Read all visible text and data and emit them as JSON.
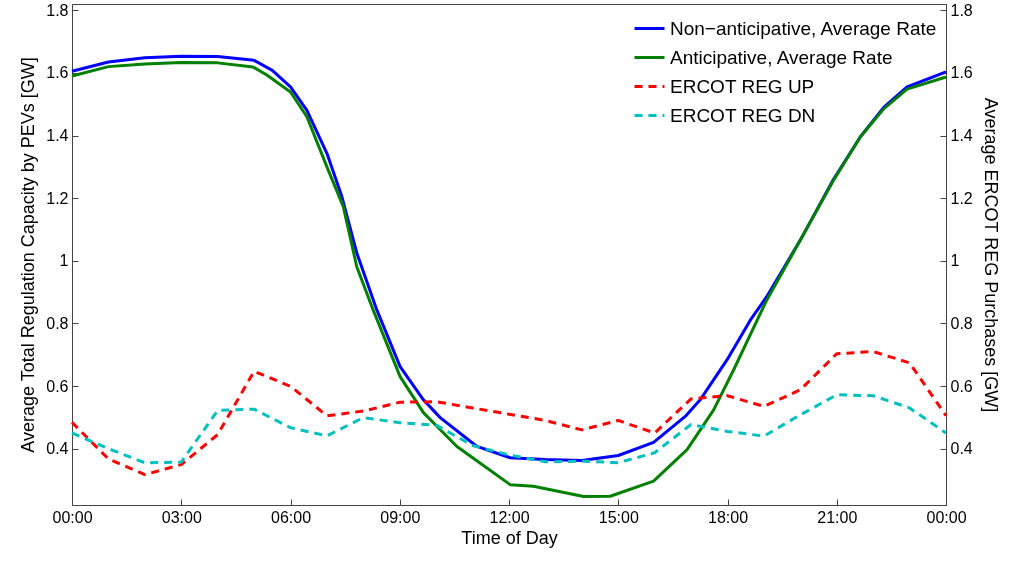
{
  "chart_data": {
    "type": "line",
    "xlabel": "Time of Day",
    "ylabel": "Average Total Regulation Capacity by PEVs [GW]",
    "y2label": "Average ERCOT REG Purchases [GW]",
    "xlim": [
      0,
      24
    ],
    "xticks": [
      {
        "value": 0,
        "label": "00:00"
      },
      {
        "value": 3,
        "label": "03:00"
      },
      {
        "value": 6,
        "label": "06:00"
      },
      {
        "value": 9,
        "label": "09:00"
      },
      {
        "value": 12,
        "label": "12:00"
      },
      {
        "value": 15,
        "label": "15:00"
      },
      {
        "value": 18,
        "label": "18:00"
      },
      {
        "value": 21,
        "label": "21:00"
      },
      {
        "value": 24,
        "label": "00:00"
      }
    ],
    "ylim": [
      0.22,
      1.82
    ],
    "yticks": [
      0.4,
      0.6,
      0.8,
      1,
      1.2,
      1.4,
      1.6,
      1.8
    ],
    "y2lim": [
      0.22,
      1.82
    ],
    "y2ticks": [
      0.4,
      0.6,
      0.8,
      1,
      1.2,
      1.4,
      1.6,
      1.8
    ],
    "grid": false,
    "legend": "top right",
    "marker": "none",
    "series": [
      {
        "name": "Non−anticipative, Average Rate",
        "color": "#0000ff",
        "line_style": "solid",
        "x": [
          0,
          1,
          2,
          3,
          4,
          5,
          5.5,
          6,
          6.45,
          7,
          7.41,
          7.82,
          8.37,
          9.01,
          9.65,
          10.11,
          11.12,
          12.03,
          13,
          14,
          15,
          15.97,
          16.84,
          17.25,
          17.99,
          18.63,
          19.08,
          20,
          20.9,
          21.65,
          22.29,
          22.93,
          24
        ],
        "values": [
          1.605,
          1.635,
          1.648,
          1.653,
          1.652,
          1.64,
          1.608,
          1.555,
          1.48,
          1.343,
          1.205,
          1.025,
          0.843,
          0.662,
          0.556,
          0.499,
          0.407,
          0.371,
          0.365,
          0.362,
          0.378,
          0.42,
          0.503,
          0.556,
          0.684,
          0.811,
          0.886,
          1.066,
          1.258,
          1.396,
          1.49,
          1.555,
          1.603
        ]
      },
      {
        "name": "Anticipative, Average Rate",
        "color": "#008000",
        "line_style": "solid",
        "x": [
          0,
          1,
          2,
          3,
          4,
          4.97,
          5.35,
          6,
          6.45,
          7,
          7.45,
          7.82,
          8.27,
          9.01,
          9.65,
          10.57,
          12.03,
          12.67,
          14.05,
          14.78,
          15.97,
          16.89,
          17.62,
          18.17,
          19.08,
          20,
          20.9,
          21.65,
          22.29,
          22.93,
          24
        ],
        "values": [
          1.59,
          1.62,
          1.628,
          1.633,
          1.632,
          1.619,
          1.593,
          1.539,
          1.46,
          1.3,
          1.173,
          0.981,
          0.843,
          0.63,
          0.515,
          0.407,
          0.285,
          0.28,
          0.247,
          0.248,
          0.296,
          0.397,
          0.524,
          0.652,
          0.875,
          1.066,
          1.255,
          1.396,
          1.485,
          1.548,
          1.587
        ]
      },
      {
        "name": "ERCOT REG UP",
        "color": "#ff0000",
        "line_style": "dashed",
        "axis": "y2",
        "x": [
          0,
          1,
          2,
          3,
          4,
          5,
          6,
          7,
          8,
          9,
          10,
          11,
          12,
          13,
          14,
          15,
          16,
          17,
          18,
          19,
          20,
          21,
          22,
          23,
          24
        ],
        "values": [
          0.484,
          0.367,
          0.317,
          0.349,
          0.445,
          0.647,
          0.599,
          0.505,
          0.52,
          0.548,
          0.55,
          0.53,
          0.51,
          0.49,
          0.46,
          0.49,
          0.45,
          0.559,
          0.569,
          0.535,
          0.588,
          0.703,
          0.71,
          0.674,
          0.505
        ]
      },
      {
        "name": "ERCOT REG DN",
        "color": "#00bfbf",
        "line_style": "dashed",
        "axis": "y2",
        "x": [
          0,
          1,
          2,
          3,
          4,
          5,
          6,
          7,
          8,
          9,
          10,
          11,
          12,
          13,
          14,
          15,
          16,
          17,
          18,
          19,
          20,
          21,
          22,
          23,
          24
        ],
        "values": [
          0.45,
          0.4,
          0.355,
          0.357,
          0.522,
          0.526,
          0.467,
          0.441,
          0.499,
          0.483,
          0.475,
          0.41,
          0.38,
          0.358,
          0.36,
          0.355,
          0.387,
          0.477,
          0.455,
          0.44,
          0.508,
          0.572,
          0.569,
          0.53,
          0.45
        ]
      }
    ]
  }
}
